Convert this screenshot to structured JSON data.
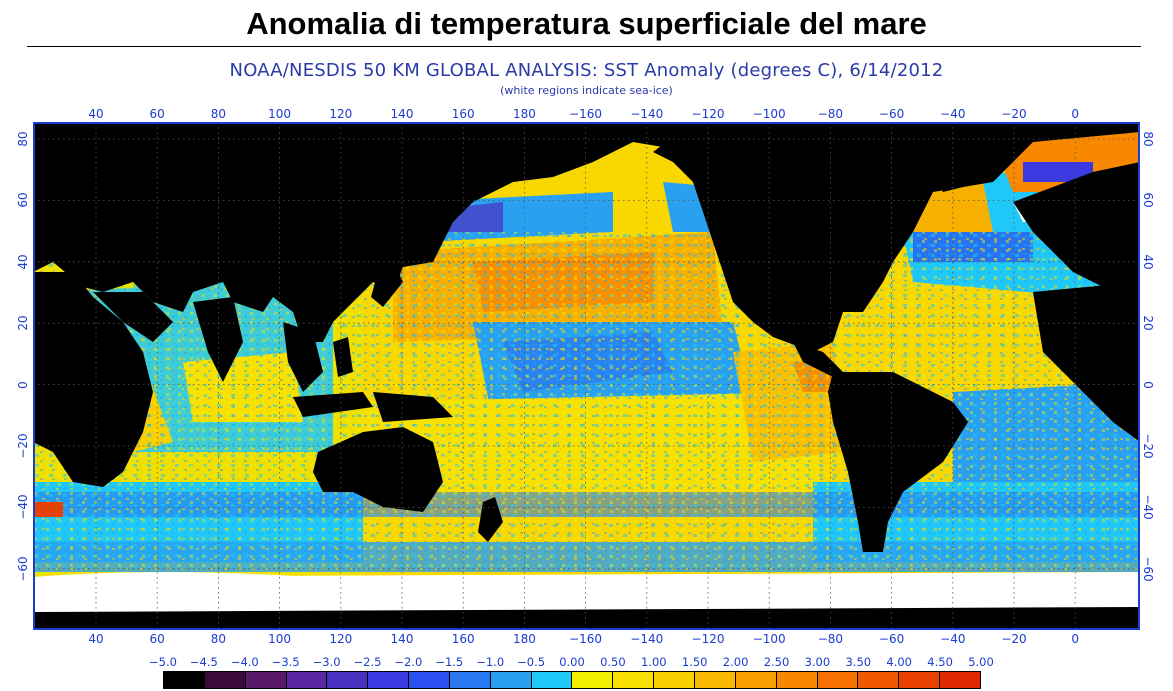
{
  "page": {
    "title": "Anomalia di temperatura superficiale del mare"
  },
  "map": {
    "title": "NOAA/NESDIS 50 KM GLOBAL ANALYSIS: SST Anomaly (degrees C), 6/14/2012",
    "subtitle": "(white regions indicate sea-ice)",
    "longitude_ticks": [
      "40",
      "60",
      "80",
      "100",
      "120",
      "140",
      "160",
      "180",
      "−160",
      "−140",
      "−120",
      "−100",
      "−80",
      "−60",
      "−40",
      "−20",
      "0"
    ],
    "latitude_ticks": [
      "80",
      "60",
      "40",
      "20",
      "0",
      "−20",
      "−40",
      "−60"
    ],
    "colors": {
      "land": "#000000",
      "sea_ice": "#ffffff",
      "frame": "#1a3ccf"
    }
  },
  "legend": {
    "labels": [
      "−5.0",
      "−4.5",
      "−4.0",
      "−3.5",
      "−3.0",
      "−2.5",
      "−2.0",
      "−1.5",
      "−1.0",
      "−0.5",
      "0.00",
      "0.50",
      "1.00",
      "1.50",
      "2.00",
      "2.50",
      "3.00",
      "3.50",
      "4.00",
      "4.50",
      "5.00"
    ],
    "colors": [
      "#000000",
      "#3a0a3a",
      "#5a1a6a",
      "#5a28a0",
      "#4a30c0",
      "#3a3ae0",
      "#2a50f0",
      "#2a78f0",
      "#2aa0f0",
      "#20c8f8",
      "#f0f000",
      "#f8e000",
      "#f8d000",
      "#f8b800",
      "#f8a000",
      "#f88800",
      "#f87000",
      "#f05800",
      "#e84000",
      "#e02800"
    ]
  }
}
